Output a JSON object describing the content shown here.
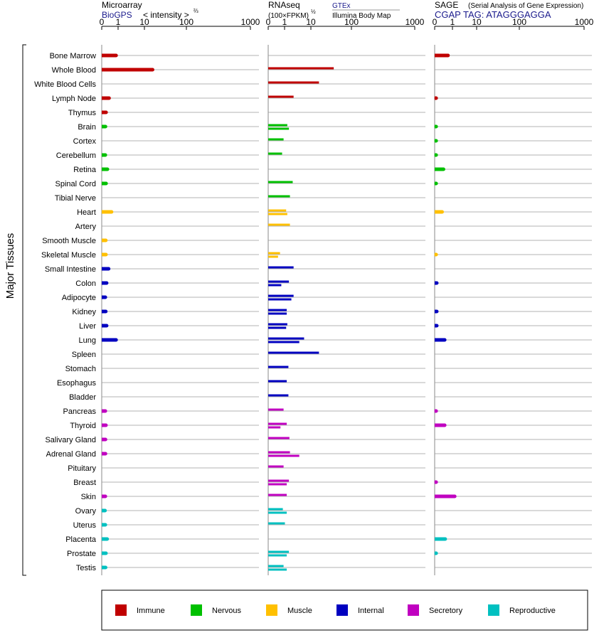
{
  "colors": {
    "Immune": "#c00000",
    "Nervous": "#00c000",
    "Muscle": "#ffc000",
    "Internal": "#0000c0",
    "Secretory": "#c000c0",
    "Reproductive": "#00c0c0"
  },
  "axis_label": "Major Tissues",
  "panels": {
    "microarray": {
      "title": "Microarray",
      "subtitle": "BioGPS",
      "scale_label": "< intensity >",
      "scale_exp": "⅔"
    },
    "rnaseq": {
      "title": "RNAseq",
      "unit_label": "(100×FPKM)",
      "unit_exp": "½",
      "source1": "GTEx",
      "source2": "Illumina Body Map"
    },
    "sage": {
      "title": "SAGE",
      "note": "(Serial Analysis of Gene Expression)",
      "tag": "CGAP TAG: ATAGGGAGGA"
    }
  },
  "legend": [
    "Immune",
    "Nervous",
    "Muscle",
    "Internal",
    "Secretory",
    "Reproductive"
  ],
  "chart_data": {
    "type": "bar",
    "orientation": "horizontal",
    "x_scale": "power",
    "x_ticks": [
      0,
      1,
      10,
      100,
      1000
    ],
    "xlim": [
      0,
      1000
    ],
    "categories": [
      "Bone Marrow",
      "Whole Blood",
      "White Blood Cells",
      "Lymph Node",
      "Thymus",
      "Brain",
      "Cortex",
      "Cerebellum",
      "Retina",
      "Spinal Cord",
      "Tibial Nerve",
      "Heart",
      "Artery",
      "Smooth Muscle",
      "Skeletal Muscle",
      "Small Intestine",
      "Colon",
      "Adipocyte",
      "Kidney",
      "Liver",
      "Lung",
      "Spleen",
      "Stomach",
      "Esophagus",
      "Bladder",
      "Pancreas",
      "Thyroid",
      "Salivary Gland",
      "Adrenal Gland",
      "Pituitary",
      "Breast",
      "Skin",
      "Ovary",
      "Uterus",
      "Placenta",
      "Prostate",
      "Testis"
    ],
    "category_groups": [
      "Immune",
      "Immune",
      "Immune",
      "Immune",
      "Immune",
      "Nervous",
      "Nervous",
      "Nervous",
      "Nervous",
      "Nervous",
      "Nervous",
      "Muscle",
      "Muscle",
      "Muscle",
      "Muscle",
      "Internal",
      "Internal",
      "Internal",
      "Internal",
      "Internal",
      "Internal",
      "Internal",
      "Internal",
      "Internal",
      "Internal",
      "Secretory",
      "Secretory",
      "Secretory",
      "Secretory",
      "Secretory",
      "Secretory",
      "Secretory",
      "Reproductive",
      "Reproductive",
      "Reproductive",
      "Reproductive",
      "Reproductive"
    ],
    "microarray": [
      30,
      200,
      null,
      11,
      5,
      4,
      null,
      3.8,
      7.5,
      5,
      null,
      17,
      null,
      4.5,
      4.8,
      10,
      6,
      3.8,
      4.5,
      6,
      30,
      null,
      null,
      null,
      null,
      3.8,
      4.8,
      4,
      4,
      null,
      null,
      3.8,
      3.3,
      3.8,
      7,
      4.8,
      4.2
    ],
    "rnaseq_gtex": [
      null,
      200,
      120,
      30,
      null,
      17,
      11,
      9,
      null,
      28,
      22,
      15,
      22,
      null,
      6.5,
      30,
      20,
      30,
      16,
      17,
      60,
      120,
      19,
      16,
      19,
      11,
      16,
      21,
      22,
      11,
      20,
      16,
      10,
      13,
      null,
      20,
      11
    ],
    "rnaseq_ibm": [
      null,
      null,
      null,
      null,
      null,
      20,
      null,
      null,
      null,
      null,
      null,
      17,
      null,
      null,
      4.5,
      null,
      8,
      25,
      16,
      15,
      45,
      null,
      null,
      null,
      null,
      null,
      7,
      null,
      45,
      null,
      16,
      null,
      16,
      null,
      null,
      16,
      16
    ],
    "sage": [
      8,
      null,
      null,
      0.1,
      null,
      0.1,
      0.1,
      0.1,
      3.5,
      0.1,
      null,
      2.5,
      null,
      null,
      0.1,
      null,
      0.2,
      null,
      0.2,
      0.2,
      4.5,
      null,
      null,
      null,
      null,
      0.1,
      4.5,
      null,
      null,
      null,
      0.1,
      18,
      null,
      null,
      5,
      0.1,
      null
    ]
  }
}
